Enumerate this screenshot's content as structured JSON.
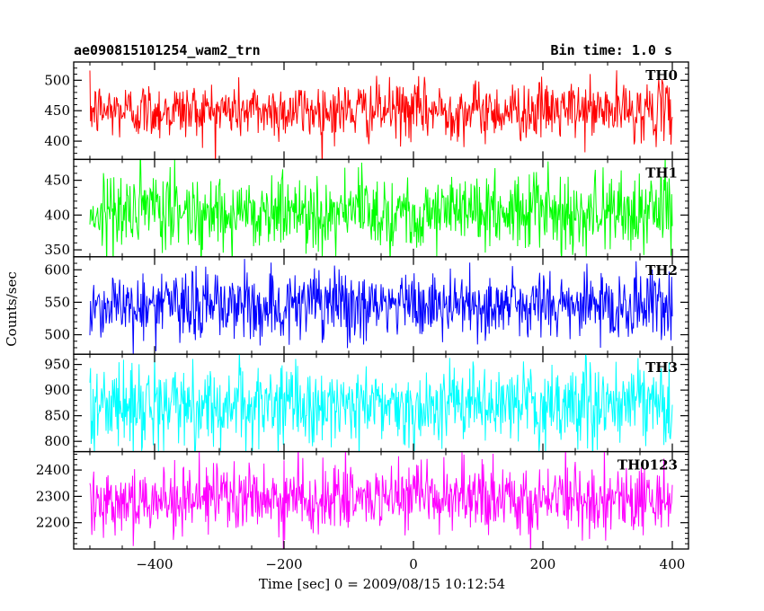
{
  "header": {
    "left_title": "ae090815101254_wam2_trn",
    "right_title": "Bin time: 1.0 s"
  },
  "chart_data": {
    "type": "line",
    "title": "ae090815101254_wam2_trn",
    "subtitle": "Bin time: 1.0 s",
    "xlabel": "Time [sec] 0 = 2009/08/15 10:12:54",
    "ylabel": "Counts/sec",
    "xlim": [
      -525,
      425
    ],
    "x_ticks": [
      -400,
      -200,
      0,
      200,
      400
    ],
    "x_tick_labels": [
      "−400",
      "−200",
      "0",
      "200",
      "400"
    ],
    "x_range_data": [
      -500,
      400
    ],
    "bin_time_s": 1.0,
    "panels": [
      {
        "name": "TH0",
        "color": "#ff0000",
        "ylim": [
          370,
          530
        ],
        "y_ticks": [
          400,
          450,
          500
        ],
        "mean": 450,
        "typical_low": 405,
        "typical_high": 500
      },
      {
        "name": "TH1",
        "color": "#00ff00",
        "ylim": [
          340,
          480
        ],
        "y_ticks": [
          350,
          400,
          450
        ],
        "mean": 405,
        "typical_low": 360,
        "typical_high": 470
      },
      {
        "name": "TH2",
        "color": "#0000ff",
        "ylim": [
          470,
          620
        ],
        "y_ticks": [
          500,
          550,
          600
        ],
        "mean": 545,
        "typical_low": 495,
        "typical_high": 605
      },
      {
        "name": "TH3",
        "color": "#00ffff",
        "ylim": [
          780,
          970
        ],
        "y_ticks": [
          800,
          850,
          900,
          950
        ],
        "mean": 870,
        "typical_low": 800,
        "typical_high": 955
      },
      {
        "name": "TH0123",
        "color": "#ff00ff",
        "ylim": [
          2100,
          2470
        ],
        "y_ticks": [
          2200,
          2300,
          2400
        ],
        "mean": 2290,
        "typical_low": 2180,
        "typical_high": 2440
      }
    ]
  }
}
